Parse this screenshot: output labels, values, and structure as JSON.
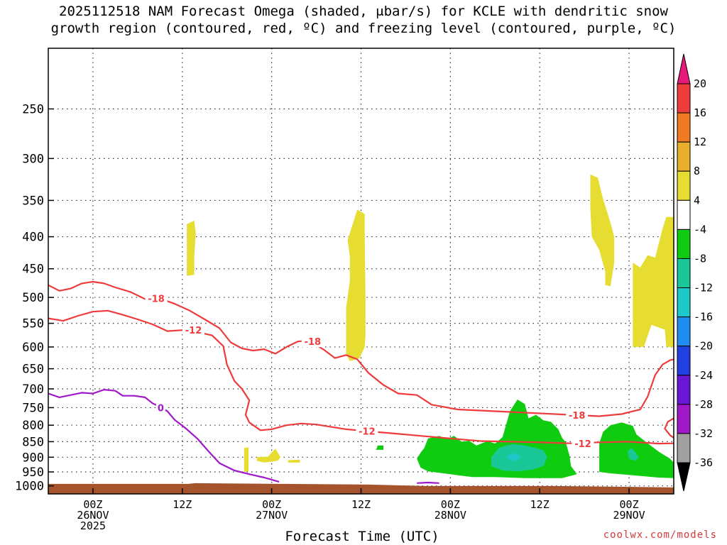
{
  "title_line1": "2025112518 NAM Forecast Omega (shaded, μbar/s) for KCLE with dendritic snow",
  "title_line2": "growth region (contoured, red, ºC) and freezing level (contoured, purple, ºC)",
  "x_axis_label": "Forecast Time (UTC)",
  "credit": "coolwx.com/models",
  "chart_data": {
    "type": "time-height cross section",
    "yaxis": {
      "scale": "log-pressure",
      "units": "hPa",
      "ylim": [
        1030,
        200
      ],
      "ticks": [
        250,
        300,
        350,
        400,
        450,
        500,
        550,
        600,
        650,
        700,
        750,
        800,
        850,
        900,
        950,
        1000
      ]
    },
    "xaxis": {
      "units": "hours from 2025-11-25 18Z",
      "xlim": [
        0,
        84
      ],
      "ticks": [
        {
          "hour": 6,
          "lines": [
            "00Z",
            "26NOV",
            "2025"
          ]
        },
        {
          "hour": 18,
          "lines": [
            "12Z"
          ]
        },
        {
          "hour": 30,
          "lines": [
            "00Z",
            "27NOV"
          ]
        },
        {
          "hour": 42,
          "lines": [
            "12Z"
          ]
        },
        {
          "hour": 54,
          "lines": [
            "00Z",
            "28NOV"
          ]
        },
        {
          "hour": 66,
          "lines": [
            "12Z"
          ]
        },
        {
          "hour": 78,
          "lines": [
            "00Z",
            "29NOV"
          ]
        }
      ]
    },
    "grid": "dotted, at pressure ticks and time ticks",
    "colorbar": {
      "position": "right",
      "labels": [
        "20",
        "16",
        "12",
        "8",
        "4",
        "-4",
        "-8",
        "-12",
        "-16",
        "-20",
        "-24",
        "-28",
        "-32",
        "-36"
      ],
      "bins": [
        {
          "min": 16,
          "max": 20,
          "color": "#ee3b3b"
        },
        {
          "min": 12,
          "max": 16,
          "color": "#f07a23"
        },
        {
          "min": 8,
          "max": 12,
          "color": "#e8ae2c"
        },
        {
          "min": 4,
          "max": 8,
          "color": "#e6dc32"
        },
        {
          "min": -4,
          "max": 4,
          "color": "#ffffff"
        },
        {
          "min": -8,
          "max": -4,
          "color": "#10cc10"
        },
        {
          "min": -12,
          "max": -8,
          "color": "#19c896"
        },
        {
          "min": -16,
          "max": -12,
          "color": "#1ec8c8"
        },
        {
          "min": -20,
          "max": -16,
          "color": "#1e8cf0"
        },
        {
          "min": -24,
          "max": -20,
          "color": "#2040e0"
        },
        {
          "min": -28,
          "max": -24,
          "color": "#6a16d6"
        },
        {
          "min": -32,
          "max": -28,
          "color": "#a018c8"
        },
        {
          "min": -36,
          "max": -32,
          "color": "#a0a0a0"
        }
      ],
      "over_color": "#e8197a",
      "under_color": "#000000"
    },
    "ground_color": "#a5532d",
    "contours": [
      {
        "label": "-18",
        "color": "#ee3b3b",
        "label_at": {
          "t": 14.5,
          "p": 502
        },
        "points": [
          [
            0,
            478
          ],
          [
            1.5,
            488
          ],
          [
            3,
            484
          ],
          [
            4.5,
            475
          ],
          [
            6,
            472
          ],
          [
            7.5,
            475
          ],
          [
            9,
            482
          ],
          [
            11,
            490
          ],
          [
            13,
            503
          ],
          [
            15,
            502
          ],
          [
            17,
            512
          ],
          [
            19,
            525
          ],
          [
            21,
            542
          ],
          [
            23,
            560
          ],
          [
            24.5,
            590
          ],
          [
            26,
            603
          ],
          [
            27.5,
            608
          ],
          [
            29,
            605
          ],
          [
            30.5,
            615
          ],
          [
            32,
            600
          ],
          [
            33.5,
            588
          ],
          [
            35,
            586
          ],
          [
            37,
            606
          ],
          [
            38.5,
            625
          ],
          [
            40,
            618
          ],
          [
            41.5,
            628
          ],
          [
            43,
            660
          ],
          [
            45,
            690
          ],
          [
            47,
            712
          ],
          [
            49.5,
            716
          ],
          [
            51.5,
            742
          ],
          [
            55,
            755
          ],
          [
            60,
            760
          ],
          [
            65,
            765
          ],
          [
            70,
            770
          ],
          [
            74,
            774
          ],
          [
            77,
            768
          ],
          [
            79.5,
            755
          ],
          [
            80.5,
            720
          ],
          [
            81.5,
            665
          ],
          [
            82.5,
            640
          ],
          [
            83.5,
            630
          ],
          [
            84,
            628
          ]
        ]
      },
      {
        "label": "-12",
        "color": "#ee3b3b",
        "label_at": {
          "t": 19.5,
          "p": 564
        },
        "points": [
          [
            0,
            540
          ],
          [
            2,
            545
          ],
          [
            4,
            535
          ],
          [
            6,
            527
          ],
          [
            8,
            525
          ],
          [
            10,
            533
          ],
          [
            12,
            542
          ],
          [
            14,
            552
          ],
          [
            16,
            566
          ],
          [
            18,
            564
          ],
          [
            20,
            568
          ],
          [
            22,
            575
          ],
          [
            23.5,
            598
          ],
          [
            24,
            640
          ],
          [
            25,
            680
          ],
          [
            26,
            700
          ],
          [
            27,
            730
          ],
          [
            26.5,
            770
          ],
          [
            27,
            792
          ],
          [
            28.5,
            815
          ],
          [
            30,
            812
          ],
          [
            32,
            800
          ],
          [
            34,
            795
          ],
          [
            36,
            798
          ],
          [
            38,
            805
          ],
          [
            40,
            812
          ],
          [
            42,
            816
          ],
          [
            44,
            820
          ],
          [
            47,
            826
          ],
          [
            50,
            832
          ],
          [
            54,
            840
          ],
          [
            58,
            848
          ],
          [
            62,
            850
          ],
          [
            66,
            852
          ],
          [
            70,
            855
          ],
          [
            74,
            852
          ],
          [
            78,
            850
          ],
          [
            82,
            856
          ],
          [
            84,
            855
          ]
        ]
      },
      {
        "label": "-12",
        "color": "#ee3b3b",
        "label_at": null,
        "points": [
          [
            84,
            780
          ],
          [
            83.2,
            790
          ],
          [
            82.8,
            810
          ],
          [
            83.5,
            830
          ],
          [
            84,
            838
          ]
        ]
      },
      {
        "label": "0",
        "color": "#a018c8",
        "label_at": {
          "t": 14.8,
          "p": 748
        },
        "points": [
          [
            0,
            712
          ],
          [
            1.5,
            722
          ],
          [
            3,
            716
          ],
          [
            4.5,
            710
          ],
          [
            6,
            712
          ],
          [
            7.5,
            702
          ],
          [
            9,
            705
          ],
          [
            10,
            718
          ],
          [
            11.5,
            718
          ],
          [
            13,
            722
          ],
          [
            14,
            738
          ],
          [
            15,
            748
          ],
          [
            16,
            760
          ],
          [
            17,
            785
          ],
          [
            18.5,
            810
          ],
          [
            20,
            840
          ],
          [
            21.5,
            880
          ],
          [
            23,
            920
          ],
          [
            25,
            945
          ],
          [
            27,
            958
          ],
          [
            29,
            970
          ],
          [
            31,
            985
          ]
        ]
      },
      {
        "label": "",
        "color": "#a018c8",
        "label_at": null,
        "points": [
          [
            49.5,
            990
          ],
          [
            51,
            988
          ],
          [
            52.5,
            990
          ]
        ]
      }
    ],
    "shaded_regions": [
      {
        "value_bin": "4 to 8",
        "points": [
          [
            18.6,
            382
          ],
          [
            19.6,
            377
          ],
          [
            19.8,
            395
          ],
          [
            19.6,
            430
          ],
          [
            19.6,
            460
          ],
          [
            18.6,
            462
          ],
          [
            18.6,
            410
          ]
        ]
      },
      {
        "value_bin": "4 to 8",
        "points": [
          [
            41.5,
            362
          ],
          [
            42.5,
            368
          ],
          [
            42.5,
            400
          ],
          [
            42.6,
            500
          ],
          [
            42.6,
            575
          ],
          [
            42.5,
            600
          ],
          [
            41.8,
            625
          ],
          [
            40.5,
            632
          ],
          [
            40,
            615
          ],
          [
            40,
            520
          ],
          [
            40.5,
            470
          ],
          [
            40.5,
            430
          ],
          [
            40.2,
            405
          ]
        ]
      },
      {
        "value_bin": "4 to 8",
        "points": [
          [
            26.3,
            870
          ],
          [
            26.9,
            868
          ],
          [
            26.9,
            912
          ],
          [
            26.9,
            948
          ],
          [
            26.3,
            950
          ],
          [
            26.3,
            908
          ]
        ]
      },
      {
        "value_bin": "4 to 8",
        "points": [
          [
            28,
            900
          ],
          [
            29.5,
            898
          ],
          [
            30.5,
            872
          ],
          [
            31.2,
            900
          ],
          [
            30.8,
            912
          ],
          [
            29,
            918
          ],
          [
            28,
            912
          ]
        ]
      },
      {
        "value_bin": "4 to 8",
        "points": [
          [
            32.2,
            910
          ],
          [
            33.8,
            908
          ],
          [
            33.8,
            918
          ],
          [
            32.2,
            918
          ]
        ]
      },
      {
        "value_bin": "4 to 8",
        "points": [
          [
            72.8,
            318
          ],
          [
            73.8,
            322
          ],
          [
            74.5,
            348
          ],
          [
            75.5,
            380
          ],
          [
            76,
            400
          ],
          [
            76,
            440
          ],
          [
            75.5,
            480
          ],
          [
            75.5,
            600
          ],
          [
            78.5,
            600
          ],
          [
            78.5,
            440
          ],
          [
            79.5,
            448
          ],
          [
            80.5,
            428
          ],
          [
            81.5,
            432
          ],
          [
            82.5,
            388
          ],
          [
            83,
            372
          ],
          [
            84,
            372
          ],
          [
            84,
            600
          ],
          [
            83,
            600
          ],
          [
            82.8,
            563
          ],
          [
            81,
            553
          ],
          [
            80,
            600
          ],
          [
            75.5,
            600
          ],
          [
            75.5,
            480
          ],
          [
            74.8,
            478
          ],
          [
            74.8,
            455
          ],
          [
            74,
            420
          ],
          [
            73,
            400
          ],
          [
            72.8,
            360
          ]
        ]
      },
      {
        "value_bin": "-4 to -8",
        "points": [
          [
            44,
            876
          ],
          [
            44.2,
            866
          ],
          [
            44.2,
            862
          ],
          [
            45,
            862
          ],
          [
            45,
            876
          ]
        ]
      },
      {
        "value_bin": "-4 to -8",
        "points": [
          [
            50,
            885
          ],
          [
            50.5,
            870
          ],
          [
            51,
            840
          ],
          [
            52.5,
            832
          ],
          [
            53.5,
            842
          ],
          [
            54.5,
            832
          ],
          [
            55.5,
            850
          ],
          [
            56.5,
            847
          ],
          [
            57.5,
            862
          ],
          [
            59,
            848
          ],
          [
            60,
            856
          ],
          [
            61,
            836
          ],
          [
            62,
            760
          ],
          [
            63,
            728
          ],
          [
            64,
            740
          ],
          [
            64.5,
            780
          ],
          [
            65.5,
            770
          ],
          [
            66.5,
            786
          ],
          [
            67.5,
            790
          ],
          [
            68.5,
            812
          ],
          [
            69,
            838
          ],
          [
            69.5,
            852
          ],
          [
            70,
            895
          ],
          [
            70.2,
            930
          ],
          [
            71,
            958
          ],
          [
            69,
            972
          ],
          [
            64,
            972
          ],
          [
            60,
            968
          ],
          [
            57,
            968
          ],
          [
            55,
            962
          ],
          [
            54,
            958
          ],
          [
            51,
            948
          ],
          [
            50,
            935
          ],
          [
            49.5,
            905
          ]
        ]
      },
      {
        "value_bin": "-4 to -8",
        "points": [
          [
            74,
            855
          ],
          [
            74.5,
            820
          ],
          [
            75.5,
            800
          ],
          [
            77,
            792
          ],
          [
            78.5,
            802
          ],
          [
            79,
            828
          ],
          [
            80.5,
            855
          ],
          [
            82,
            882
          ],
          [
            83.5,
            905
          ],
          [
            84,
            918
          ],
          [
            84,
            972
          ],
          [
            82,
            970
          ],
          [
            78.5,
            962
          ],
          [
            75.5,
            955
          ],
          [
            74,
            950
          ]
        ]
      },
      {
        "value_bin": "-8 to -12",
        "points": [
          [
            59.5,
            900
          ],
          [
            60.5,
            870
          ],
          [
            61.5,
            862
          ],
          [
            62.5,
            858
          ],
          [
            64,
            862
          ],
          [
            65.5,
            870
          ],
          [
            66.5,
            878
          ],
          [
            67,
            900
          ],
          [
            66.5,
            930
          ],
          [
            65,
            942
          ],
          [
            63,
            948
          ],
          [
            61,
            945
          ],
          [
            59.5,
            930
          ]
        ]
      },
      {
        "value_bin": "-8 to -12",
        "points": [
          [
            77.8,
            880
          ],
          [
            78.3,
            870
          ],
          [
            78.8,
            882
          ],
          [
            79.3,
            900
          ],
          [
            78.8,
            912
          ],
          [
            78,
            905
          ]
        ]
      },
      {
        "value_bin": "-12 to -16",
        "points": [
          [
            61.6,
            895
          ],
          [
            62.4,
            887
          ],
          [
            63.2,
            892
          ],
          [
            63.4,
            903
          ],
          [
            62.7,
            912
          ],
          [
            61.8,
            908
          ]
        ]
      }
    ]
  }
}
